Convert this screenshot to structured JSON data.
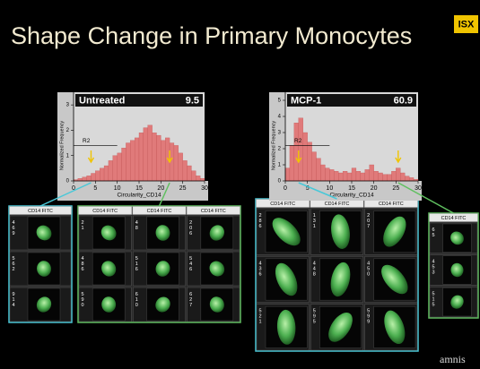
{
  "title": "Shape Change in Primary Monocytes",
  "logo": "ISX",
  "footer_logo": "amnis",
  "chart_data": [
    {
      "type": "histogram",
      "title": "Untreated",
      "value_label": "9.5",
      "ylabel": "Normalized Frequency",
      "xlabel": "Circularity_CD14",
      "gate": "R2",
      "bins": [
        0,
        1,
        2,
        3,
        4,
        5,
        6,
        7,
        8,
        9,
        10,
        11,
        12,
        13,
        14,
        15,
        16,
        17,
        18,
        19,
        20,
        21,
        22,
        23,
        24,
        25,
        26,
        27,
        28,
        29,
        30
      ],
      "values": [
        0.05,
        0.1,
        0.15,
        0.2,
        0.3,
        0.4,
        0.5,
        0.6,
        0.8,
        1.0,
        1.1,
        1.3,
        1.5,
        1.6,
        1.7,
        1.9,
        2.1,
        2.2,
        1.9,
        1.8,
        1.6,
        1.7,
        1.5,
        1.4,
        1.1,
        0.8,
        0.6,
        0.4,
        0.2,
        0.1
      ],
      "color": "#e07a7a",
      "xlim": [
        0,
        30
      ],
      "ylim": [
        0,
        3.5
      ],
      "xticks": [
        0,
        5,
        10,
        15,
        20,
        25,
        30
      ],
      "yticks": [
        0,
        1,
        2,
        3
      ],
      "markers": [
        {
          "x": 4,
          "color": "#48c8d8"
        },
        {
          "x": 22,
          "color": "#60c060"
        }
      ]
    },
    {
      "type": "histogram",
      "title": "MCP-1",
      "value_label": "60.9",
      "ylabel": "Normalized Frequency",
      "xlabel": "Circularity_CD14",
      "gate": "R2",
      "bins": [
        0,
        1,
        2,
        3,
        4,
        5,
        6,
        7,
        8,
        9,
        10,
        11,
        12,
        13,
        14,
        15,
        16,
        17,
        18,
        19,
        20,
        21,
        22,
        23,
        24,
        25,
        26,
        27,
        28,
        29,
        30
      ],
      "values": [
        0.8,
        2.2,
        3.6,
        3.9,
        3.0,
        2.4,
        1.8,
        1.4,
        1.0,
        0.8,
        0.7,
        0.6,
        0.5,
        0.6,
        0.5,
        0.8,
        0.6,
        0.5,
        0.7,
        1.0,
        0.6,
        0.5,
        0.4,
        0.4,
        0.6,
        0.8,
        0.5,
        0.3,
        0.2,
        0.1
      ],
      "color": "#e07a7a",
      "xlim": [
        0,
        30
      ],
      "ylim": [
        0,
        5.5
      ],
      "xticks": [
        0,
        5,
        10,
        15,
        20,
        25,
        30
      ],
      "yticks": [
        0,
        1,
        2,
        3,
        4,
        5
      ],
      "markers": [
        {
          "x": 3,
          "color": "#48c8d8"
        },
        {
          "x": 25.5,
          "color": "#60c060"
        }
      ]
    }
  ],
  "galleries": [
    {
      "color": "#48c8d8",
      "headers": [
        "CD14 FITC"
      ],
      "cells": [
        "469",
        "562",
        "914"
      ]
    },
    {
      "color": "#60c060",
      "headers": [
        "CD14 FITC",
        "CD14 FITC",
        "CD14 FITC"
      ],
      "cells": [
        "21",
        "48",
        "206",
        "486",
        "516",
        "546",
        "590",
        "610",
        "627"
      ]
    },
    {
      "color": "#48c8d8",
      "headers": [
        "CD14 FITC",
        "CD14 FITC",
        "CD14 FITC"
      ],
      "cells": [
        "286",
        "131",
        "207",
        "436",
        "448",
        "450",
        "521",
        "595",
        "599"
      ]
    },
    {
      "color": "#60c060",
      "headers": [
        "CD14 FITC"
      ],
      "cells": [
        "65",
        "453",
        "515"
      ]
    }
  ]
}
